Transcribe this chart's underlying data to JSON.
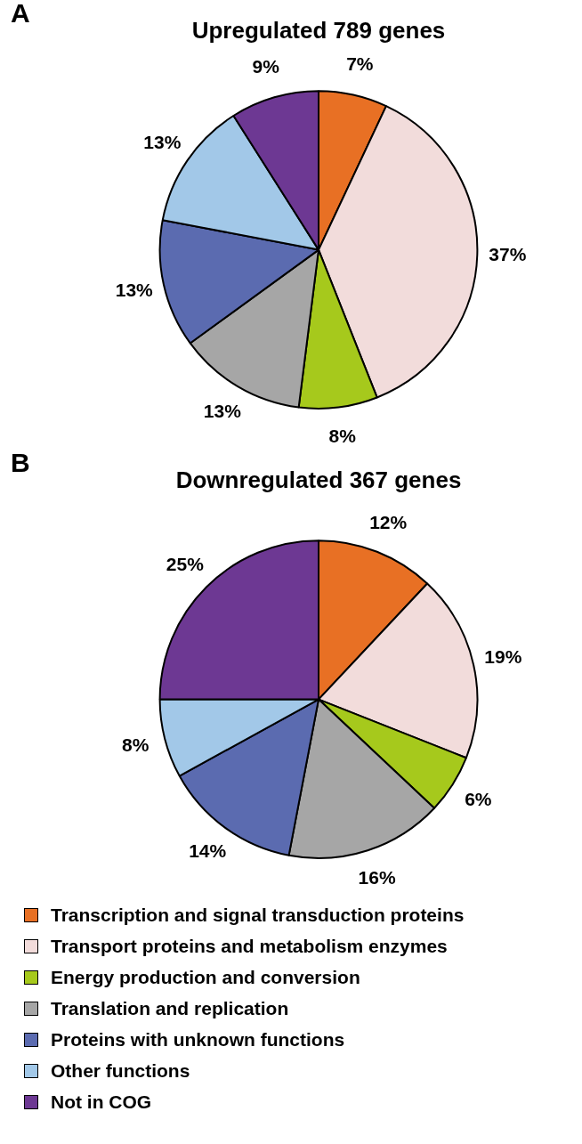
{
  "chart_data": [
    {
      "type": "pie",
      "title": "Upregulated 789 genes",
      "annotations": [
        "A"
      ],
      "categories": [
        null,
        null,
        null,
        null,
        null,
        null,
        null
      ],
      "values": [
        7,
        37,
        8,
        13,
        13,
        13,
        9
      ],
      "value_labels": [
        "7%",
        "37%",
        "8%",
        "13%",
        "13%",
        "13%",
        "9%"
      ],
      "colors": [
        "#e87024",
        "#f2dcdb",
        "#a6c91c",
        "#a6a6a6",
        "#5b6bb0",
        "#a2c8e8",
        "#6d3893"
      ]
    },
    {
      "type": "pie",
      "title": "Downregulated 367 genes",
      "annotations": [
        "B"
      ],
      "legend": "bottom",
      "categories": [
        "Transcription and signal transduction proteins",
        "Transport proteins and metabolism enzymes",
        "Energy production and conversion",
        "Translation and replication",
        "Proteins with unknown functions",
        "Other functions",
        "Not in COG"
      ],
      "values": [
        12,
        19,
        6,
        16,
        14,
        8,
        25
      ],
      "value_labels": [
        "12%",
        "19%",
        "6%",
        "16%",
        "14%",
        "8%",
        "25%"
      ],
      "colors": [
        "#e87024",
        "#f2dcdb",
        "#a6c91c",
        "#a6a6a6",
        "#5b6bb0",
        "#a2c8e8",
        "#6d3893"
      ]
    }
  ]
}
